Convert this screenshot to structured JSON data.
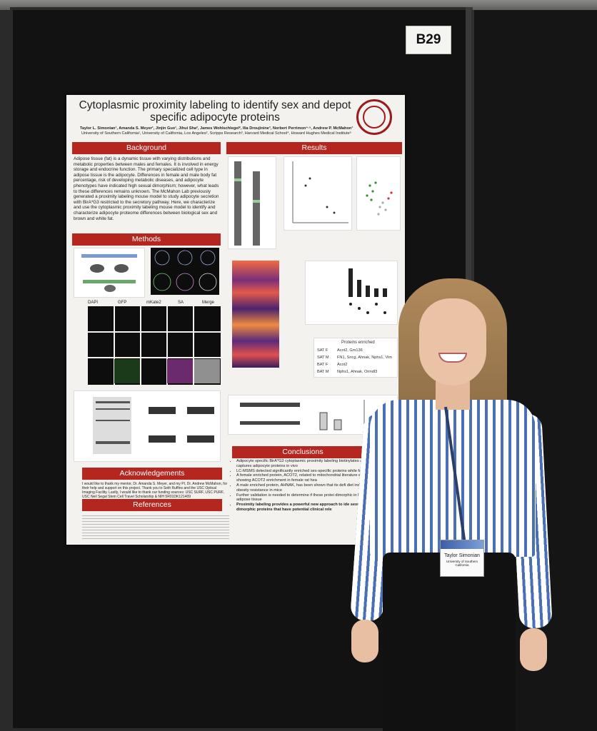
{
  "booth": "B29",
  "poster": {
    "title_line1": "Cytoplasmic proximity labeling to identify sex and depot",
    "title_line2": "specific adipocyte proteins",
    "authors": "Taylor L. Simonian¹, Amanda S. Meyer¹, Jinjin Guo¹, Jihui Sha², James Wohlschlegel², Ilia Droujinine³, Norbert Perrimon⁴·⁵, Andrew P. McMahon¹",
    "affiliations": "University of Southern California¹, University of California, Los Angeles², Scripps Research³, Harvard Medical School⁴, Howard Hughes Medical Institute⁵",
    "sections": {
      "background": "Background",
      "results": "Results",
      "methods": "Methods",
      "acknowledgements": "Acknowledgements",
      "references": "References",
      "conclusions": "Conclusions"
    },
    "background_text": "Adipose tissue (fat) is a dynamic tissue with varying distributions and metabolic properties between males and females. It is involved in energy storage and endocrine function. The primary specialized cell type in adipose tissue is the adipocyte. Differences in female and male body fat percentage, risk of developing metabolic diseases, and adipocyte phenotypes have indicated high sexual dimorphism; however, what leads to these differences remains unknown. The McMahon Lab previously generated a proximity labeling mouse model to study adipocyte secretion with BirA*G3 restricted to the secretory pathway. Here, we characterize and use the cytoplasmic proximity labeling mouse model to identify and characterize adipocyte proteome differences between biological sex and brown and white fat.",
    "methods_labels": [
      "DAPI",
      "GFP",
      "mKate2",
      "SA",
      "Merge"
    ],
    "table": {
      "header": "Proteins enriched",
      "rows": [
        {
          "group": "SAT F",
          "proteins": "Acot2, Gm136"
        },
        {
          "group": "SAT M",
          "proteins": "FN1, Sncg, Ahnak, Nphs1, Vim"
        },
        {
          "group": "BAT F",
          "proteins": "Acot2"
        },
        {
          "group": "BAT M",
          "proteins": "Nphs1, Ahnak, Ormdl3"
        }
      ]
    },
    "acknowledgements_text": "I would like to thank my mentor, Dr. Amanda S. Meyer, and my PI, Dr. Andrew McMahon, for their help and support on this project. Thank you to Seth Ruffins and the USC Optical Imaging Facility. Lastly, I would like to thank our funding sources: USC SURF, USC PURF, USC Neil Segal Stem Cell Travel Scholarship & NIH 5R01DK121409",
    "conclusions": [
      "Adipocyte specific BirA*G3 cytoplasmic proximity labeling biotinylates and captures adipocyte proteins in vivo",
      "LC-MSMS detected significantly enriched sex-specific proteins while fat",
      "A female enriched protein, ACOT2, related to mitochondrial literature evidence showing ACOT2 enrichment in female rat hea",
      "A male enriched protein, AHNAK, has been shown that its defi diet induced obesity resistance in mice",
      "Further validation is needed to determine if these protei dimorphic in human adipose tissue",
      "Proximity labeling provides a powerful new approach to ide sexually dimorphic proteins that have potential clinical rele"
    ]
  },
  "badge": {
    "name": "Taylor Simonian",
    "org": "University of Southern California"
  },
  "colors": {
    "header_red": "#b5261e",
    "shirt_blue": "#4a6fb5"
  }
}
